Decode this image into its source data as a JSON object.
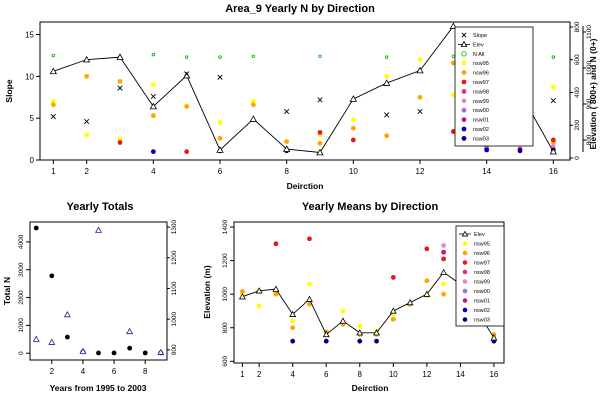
{
  "chart_data": [
    {
      "id": "top",
      "type": "scatter",
      "title": "Area_9 Yearly N by Direction",
      "xlabel": "Deirction",
      "ylabel": "Slope",
      "y2label": "Elevation ( 800+) and N (0+)",
      "xlim": [
        0.6,
        16.5
      ],
      "ylim": [
        0,
        16.5
      ],
      "xticks": [
        1,
        2,
        4,
        6,
        8,
        10,
        12,
        14,
        16
      ],
      "yticks": [
        0,
        5,
        10,
        15
      ],
      "y2ticks": [
        0,
        200,
        400,
        600,
        800
      ],
      "y2ticks_outer": [
        800,
        900,
        1000,
        1100
      ],
      "legend": {
        "position": "top-right",
        "entries": [
          {
            "label": "Slope",
            "symbol": "x",
            "color": "#000000"
          },
          {
            "label": "Elev",
            "symbol": "triangle-line",
            "color": "#000000"
          },
          {
            "label": "N All",
            "symbol": "circle-open",
            "color": "#00c000"
          },
          {
            "label": "nsw95",
            "symbol": "dot",
            "color": "#ffff00"
          },
          {
            "label": "nsw96",
            "symbol": "dot",
            "color": "#ffa500"
          },
          {
            "label": "nsw97",
            "symbol": "dot",
            "color": "#e41a1c"
          },
          {
            "label": "nsw98",
            "symbol": "dot",
            "color": "#e7298a"
          },
          {
            "label": "nsw99",
            "symbol": "dot",
            "color": "#e78ac3"
          },
          {
            "label": "nsw00",
            "symbol": "dot",
            "color": "#9370db"
          },
          {
            "label": "nsw01",
            "symbol": "dot",
            "color": "#c71585"
          },
          {
            "label": "nsw02",
            "symbol": "dot",
            "color": "#0000cd"
          },
          {
            "label": "nsw03",
            "symbol": "dot",
            "color": "#000080"
          }
        ]
      },
      "slope": [
        {
          "x": 1,
          "y": 5.2
        },
        {
          "x": 2,
          "y": 4.6
        },
        {
          "x": 3,
          "y": 8.6
        },
        {
          "x": 4,
          "y": 7.6
        },
        {
          "x": 5,
          "y": 10.3
        },
        {
          "x": 6,
          "y": 9.9
        },
        {
          "x": 8,
          "y": 5.8
        },
        {
          "x": 9,
          "y": 7.2
        },
        {
          "x": 11,
          "y": 5.4
        },
        {
          "x": 12,
          "y": 5.8
        },
        {
          "x": 14,
          "y": 8.8
        },
        {
          "x": 15,
          "y": 8.0
        },
        {
          "x": 16,
          "y": 7.1
        }
      ],
      "elev": [
        {
          "x": 1,
          "y": 10.6
        },
        {
          "x": 2,
          "y": 12.0
        },
        {
          "x": 3,
          "y": 12.3
        },
        {
          "x": 4,
          "y": 6.4
        },
        {
          "x": 5,
          "y": 10.1
        },
        {
          "x": 6,
          "y": 1.2
        },
        {
          "x": 7,
          "y": 4.9
        },
        {
          "x": 8,
          "y": 1.3
        },
        {
          "x": 9,
          "y": 0.9
        },
        {
          "x": 10,
          "y": 7.3
        },
        {
          "x": 11,
          "y": 9.2
        },
        {
          "x": 12,
          "y": 10.7
        },
        {
          "x": 13,
          "y": 16.0
        },
        {
          "x": 14,
          "y": 13.8
        },
        {
          "x": 15,
          "y": 8.1
        },
        {
          "x": 16,
          "y": 1.0
        }
      ],
      "nall": [
        {
          "x": 1,
          "y": 12.5
        },
        {
          "x": 2,
          "y": 12.0
        },
        {
          "x": 3,
          "y": 12.3
        },
        {
          "x": 4,
          "y": 12.6
        },
        {
          "x": 5,
          "y": 12.3
        },
        {
          "x": 6,
          "y": 12.3
        },
        {
          "x": 7,
          "y": 12.4
        },
        {
          "x": 9,
          "y": 12.4
        },
        {
          "x": 11,
          "y": 12.3
        },
        {
          "x": 12,
          "y": 12.0
        },
        {
          "x": 13,
          "y": 12.4
        },
        {
          "x": 14,
          "y": 12.3
        },
        {
          "x": 15,
          "y": 12.3
        },
        {
          "x": 16,
          "y": 12.3
        }
      ],
      "years": [
        {
          "name": "nsw95",
          "color": "#ffff00",
          "points": [
            [
              1,
              7.0
            ],
            [
              2,
              3.0
            ],
            [
              3,
              2.5
            ],
            [
              4,
              9.0
            ],
            [
              5,
              6.5
            ],
            [
              6,
              4.5
            ],
            [
              7,
              7.0
            ],
            [
              9,
              3.0
            ],
            [
              10,
              4.8
            ],
            [
              11,
              10.0
            ],
            [
              12,
              12.0
            ],
            [
              13,
              7.8
            ],
            [
              14,
              7.2
            ],
            [
              15,
              8.9
            ],
            [
              16,
              8.7
            ]
          ]
        },
        {
          "name": "nsw96",
          "color": "#ffa500",
          "points": [
            [
              1,
              6.6
            ],
            [
              2,
              10.0
            ],
            [
              3,
              9.4
            ],
            [
              4,
              5.3
            ],
            [
              5,
              6.4
            ],
            [
              6,
              2.6
            ],
            [
              7,
              6.6
            ],
            [
              8,
              2.2
            ],
            [
              9,
              2.0
            ],
            [
              10,
              3.8
            ],
            [
              11,
              2.9
            ],
            [
              12,
              7.5
            ],
            [
              13,
              11.6
            ],
            [
              14,
              9.4
            ],
            [
              15,
              3.0
            ],
            [
              16,
              2.1
            ]
          ]
        },
        {
          "name": "nsw97",
          "color": "#e41a1c",
          "points": [
            [
              3,
              2.1
            ],
            [
              5,
              1.0
            ],
            [
              8,
              1.2
            ],
            [
              9,
              3.3
            ],
            [
              10,
              2.4
            ],
            [
              13,
              3.4
            ],
            [
              15,
              2.1
            ],
            [
              16,
              2.4
            ]
          ]
        },
        {
          "name": "nsw98",
          "color": "#e7298a",
          "points": [
            [
              14,
              1.3
            ]
          ]
        },
        {
          "name": "nsw99",
          "color": "#e78ac3",
          "points": [
            [
              14,
              1.6
            ],
            [
              16,
              1.6
            ]
          ]
        },
        {
          "name": "nsw00",
          "color": "#9370db",
          "points": [
            [
              14,
              1.4
            ]
          ]
        },
        {
          "name": "nsw01",
          "color": "#c71585",
          "points": [
            [
              15,
              1.3
            ]
          ]
        },
        {
          "name": "nsw02",
          "color": "#0000cd",
          "points": [
            [
              4,
              1.0
            ],
            [
              14,
              1.2
            ]
          ]
        },
        {
          "name": "nsw03",
          "color": "#000080",
          "points": [
            [
              6,
              1.1
            ],
            [
              8,
              1.1
            ],
            [
              15,
              1.1
            ],
            [
              16,
              1.2
            ]
          ]
        }
      ]
    },
    {
      "id": "bottom-left",
      "type": "scatter",
      "title": "Yearly Totals",
      "xlabel": "Years from 1995 to 2003",
      "ylabel": "Total N",
      "xlim": [
        0.6,
        9.4
      ],
      "ylim": [
        -100,
        4500
      ],
      "y2lim": [
        880,
        1310
      ],
      "xticks": [
        2,
        4,
        6,
        8
      ],
      "yticks": [
        0,
        1000,
        2000,
        3000,
        4000
      ],
      "y2ticks": [
        900,
        1000,
        1100,
        1200,
        1300
      ],
      "totals": [
        {
          "x": 1,
          "y": 4500
        },
        {
          "x": 2,
          "y": 2780
        },
        {
          "x": 3,
          "y": 580
        },
        {
          "x": 4,
          "y": 50
        },
        {
          "x": 5,
          "y": 10
        },
        {
          "x": 6,
          "y": 10
        },
        {
          "x": 7,
          "y": 180
        },
        {
          "x": 8,
          "y": 10
        },
        {
          "x": 9,
          "y": 10
        }
      ],
      "elevation": [
        {
          "x": 1,
          "y": 935
        },
        {
          "x": 2,
          "y": 925
        },
        {
          "x": 3,
          "y": 1015
        },
        {
          "x": 4,
          "y": 895
        },
        {
          "x": 5,
          "y": 1290
        },
        {
          "x": 7,
          "y": 960
        },
        {
          "x": 9,
          "y": 892
        }
      ]
    },
    {
      "id": "bottom-right",
      "type": "line",
      "title": "Yearly Means by Direction",
      "xlabel": "Deirction",
      "ylabel": "Elevation (m)",
      "xlim": [
        0.5,
        16.6
      ],
      "ylim": [
        590,
        1430
      ],
      "xticks": [
        1,
        2,
        4,
        6,
        8,
        10,
        12,
        14,
        16
      ],
      "yticks": [
        600,
        800,
        1000,
        1200,
        1400
      ],
      "legend": {
        "position": "top-right",
        "entries": [
          {
            "label": "Elev",
            "symbol": "triangle-line",
            "color": "#000000"
          },
          {
            "label": "nsw95",
            "symbol": "dot",
            "color": "#ffff00"
          },
          {
            "label": "nsw96",
            "symbol": "dot",
            "color": "#ffa500"
          },
          {
            "label": "nsw97",
            "symbol": "dot",
            "color": "#e41a1c"
          },
          {
            "label": "nsw98",
            "symbol": "dot",
            "color": "#e7298a"
          },
          {
            "label": "nsw99",
            "symbol": "dot",
            "color": "#e78ac3"
          },
          {
            "label": "nsw00",
            "symbol": "dot",
            "color": "#9370db"
          },
          {
            "label": "nsw01",
            "symbol": "dot",
            "color": "#c71585"
          },
          {
            "label": "nsw02",
            "symbol": "dot",
            "color": "#0000cd"
          },
          {
            "label": "nsw03",
            "symbol": "dot",
            "color": "#000080"
          }
        ]
      },
      "elev": [
        {
          "x": 1,
          "y": 985
        },
        {
          "x": 2,
          "y": 1020
        },
        {
          "x": 3,
          "y": 1030
        },
        {
          "x": 4,
          "y": 880
        },
        {
          "x": 5,
          "y": 970
        },
        {
          "x": 6,
          "y": 760
        },
        {
          "x": 7,
          "y": 840
        },
        {
          "x": 8,
          "y": 770
        },
        {
          "x": 9,
          "y": 770
        },
        {
          "x": 10,
          "y": 900
        },
        {
          "x": 11,
          "y": 950
        },
        {
          "x": 12,
          "y": 1000
        },
        {
          "x": 13,
          "y": 1130
        },
        {
          "x": 14,
          "y": 1060
        },
        {
          "x": 15,
          "y": 900
        },
        {
          "x": 16,
          "y": 740
        }
      ],
      "years": [
        {
          "name": "nsw95",
          "color": "#ffff00",
          "points": [
            [
              1,
              1000
            ],
            [
              2,
              930
            ],
            [
              3,
              1010
            ],
            [
              4,
              840
            ],
            [
              5,
              1060
            ],
            [
              6,
              770
            ],
            [
              7,
              900
            ],
            [
              8,
              810
            ],
            [
              9,
              780
            ],
            [
              10,
              880
            ],
            [
              11,
              940
            ],
            [
              12,
              990
            ],
            [
              13,
              1060
            ],
            [
              14,
              1040
            ],
            [
              15,
              910
            ],
            [
              16,
              745
            ]
          ]
        },
        {
          "name": "nsw96",
          "color": "#ffa500",
          "points": [
            [
              1,
              1015
            ],
            [
              2,
              1020
            ],
            [
              3,
              1000
            ],
            [
              4,
              800
            ],
            [
              5,
              940
            ],
            [
              6,
              775
            ],
            [
              7,
              820
            ],
            [
              8,
              760
            ],
            [
              9,
              760
            ],
            [
              10,
              850
            ],
            [
              11,
              940
            ],
            [
              12,
              1080
            ],
            [
              13,
              1000
            ],
            [
              14,
              1200
            ],
            [
              15,
              870
            ],
            [
              16,
              760
            ]
          ]
        },
        {
          "name": "nsw97",
          "color": "#e41a1c",
          "points": [
            [
              3,
              1300
            ],
            [
              5,
              1330
            ],
            [
              10,
              1100
            ],
            [
              12,
              1270
            ],
            [
              13,
              1210
            ],
            [
              14,
              1080
            ],
            [
              15,
              1080
            ]
          ]
        },
        {
          "name": "nsw98",
          "color": "#e7298a",
          "points": [
            [
              13,
              1250
            ],
            [
              14,
              1230
            ]
          ]
        },
        {
          "name": "nsw99",
          "color": "#e78ac3",
          "points": [
            [
              13,
              1290
            ]
          ]
        },
        {
          "name": "nsw00",
          "color": "#9370db",
          "points": [
            [
              14,
              1240
            ]
          ]
        },
        {
          "name": "nsw01",
          "color": "#c71585",
          "points": [
            [
              13,
              1250
            ],
            [
              15,
              1020
            ]
          ]
        },
        {
          "name": "nsw02",
          "color": "#0000cd",
          "points": [
            [
              15,
              1100
            ]
          ]
        },
        {
          "name": "nsw03",
          "color": "#000080",
          "points": [
            [
              4,
              720
            ],
            [
              6,
              720
            ],
            [
              8,
              720
            ],
            [
              9,
              720
            ],
            [
              15,
              1090
            ],
            [
              16,
              720
            ]
          ]
        }
      ]
    }
  ]
}
